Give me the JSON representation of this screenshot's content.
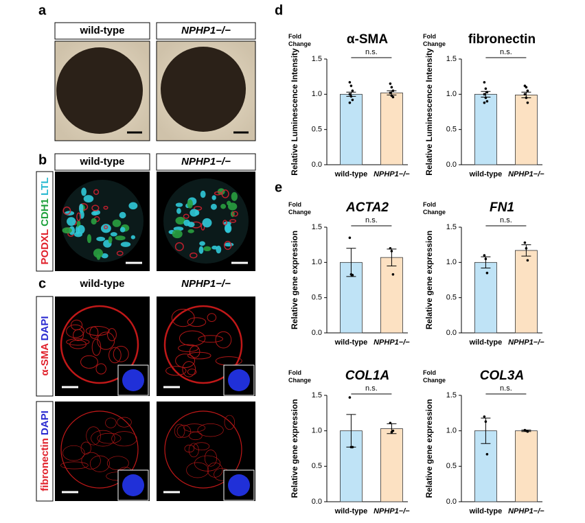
{
  "panel_labels": [
    "a",
    "b",
    "c",
    "d",
    "e"
  ],
  "column_labels": [
    "wild-type",
    "NPHP1−/−"
  ],
  "stain_labels_b": [
    "PODXL",
    "CDH1",
    "LTL"
  ],
  "stain_labels_c1": [
    "α-SMA",
    "DAPI"
  ],
  "stain_labels_c2": [
    "fibronectin",
    "DAPI"
  ],
  "chart_data": [
    {
      "type": "bar",
      "title": "α-SMA",
      "title_italic": false,
      "unit_label": "Fold Change",
      "y_label": "Relative Luminescence Intensity",
      "annotation": "n.s.",
      "categories": [
        "wild-type",
        "NPHP1−/−"
      ],
      "values": [
        1.0,
        1.02
      ],
      "errors": [
        0.03,
        0.03
      ],
      "colors": [
        "#bfe3f6",
        "#fce1c2"
      ],
      "points": [
        [
          1.17,
          1.12,
          1.05,
          1.0,
          0.97,
          0.92,
          0.88
        ],
        [
          1.15,
          1.1,
          1.05,
          1.02,
          0.98,
          0.96
        ]
      ],
      "ylim": [
        0,
        1.5
      ],
      "yticks": [
        {
          "value": 0,
          "label": "0.0"
        },
        0.5,
        {
          "value": 1,
          "label": "1.0"
        },
        1.5
      ]
    },
    {
      "type": "bar",
      "title": "fibronectin",
      "title_italic": false,
      "unit_label": "Fold Change",
      "y_label": "Relative Luminescence Intensity",
      "annotation": "n.s.",
      "categories": [
        "wild-type",
        "NPHP1−/−"
      ],
      "values": [
        1.0,
        0.99
      ],
      "errors": [
        0.04,
        0.04
      ],
      "colors": [
        "#bfe3f6",
        "#fce1c2"
      ],
      "points": [
        [
          1.17,
          1.08,
          1.03,
          1.0,
          0.95,
          0.9,
          0.88
        ],
        [
          1.12,
          1.1,
          1.05,
          1.0,
          0.95,
          0.88
        ]
      ],
      "ylim": [
        0,
        1.5
      ],
      "yticks": [
        {
          "value": 0,
          "label": "0.0"
        },
        0.5,
        {
          "value": 1,
          "label": "1.0"
        },
        1.5
      ]
    },
    {
      "type": "bar",
      "title": "ACTA2",
      "title_italic": true,
      "unit_label": "Fold Change",
      "y_label": "Relative gene expression",
      "annotation": "n.s.",
      "categories": [
        "wild-type",
        "NPHP1−/−"
      ],
      "values": [
        1.0,
        1.07
      ],
      "errors": [
        0.2,
        0.12
      ],
      "colors": [
        "#bfe3f6",
        "#fce1c2"
      ],
      "points": [
        [
          1.35,
          0.83,
          0.82
        ],
        [
          1.2,
          1.16,
          0.83
        ]
      ],
      "ylim": [
        0,
        1.5
      ],
      "yticks": [
        {
          "value": 0,
          "label": "0.0"
        },
        0.5,
        {
          "value": 1,
          "label": "1.0"
        },
        1.5
      ]
    },
    {
      "type": "bar",
      "title": "FN1",
      "title_italic": true,
      "unit_label": "Fold Change",
      "y_label": "Relative gene expression",
      "annotation": "n.s.",
      "categories": [
        "wild-type",
        "NPHP1−/−"
      ],
      "values": [
        1.0,
        1.17
      ],
      "errors": [
        0.08,
        0.08
      ],
      "colors": [
        "#bfe3f6",
        "#fce1c2"
      ],
      "points": [
        [
          1.1,
          1.05,
          0.85
        ],
        [
          1.28,
          1.2,
          1.03
        ]
      ],
      "ylim": [
        0,
        1.5
      ],
      "yticks": [
        {
          "value": 0,
          "label": "0.0"
        },
        0.5,
        {
          "value": 1,
          "label": "1.0"
        },
        1.5
      ]
    },
    {
      "type": "bar",
      "title": "COL1A",
      "title_italic": true,
      "unit_label": "Fold Change",
      "y_label": "Relative gene expression",
      "annotation": "n.s.",
      "categories": [
        "wild-type",
        "NPHP1−/−"
      ],
      "values": [
        1.0,
        1.03
      ],
      "errors": [
        0.23,
        0.07
      ],
      "colors": [
        "#bfe3f6",
        "#fce1c2"
      ],
      "points": [
        [
          1.47,
          0.77,
          0.77
        ],
        [
          1.11,
          0.98,
          1.0
        ]
      ],
      "ylim": [
        0,
        1.5
      ],
      "yticks": [
        {
          "value": 0,
          "label": "0.0"
        },
        0.5,
        {
          "value": 1,
          "label": "1.0"
        },
        1.5
      ]
    },
    {
      "type": "bar",
      "title": "COL3A",
      "title_italic": true,
      "unit_label": "Fold Change",
      "y_label": "Relative gene expression",
      "annotation": "n.s.",
      "categories": [
        "wild-type",
        "NPHP1−/−"
      ],
      "values": [
        1.0,
        1.0
      ],
      "errors": [
        0.18,
        0.01
      ],
      "colors": [
        "#bfe3f6",
        "#fce1c2"
      ],
      "points": [
        [
          1.2,
          1.13,
          0.67
        ],
        [
          1.01,
          1.0,
          0.99
        ]
      ],
      "ylim": [
        0,
        1.5
      ],
      "yticks": [
        {
          "value": 0,
          "label": "0.0"
        },
        0.5,
        {
          "value": 1,
          "label": "1.0"
        },
        1.5
      ]
    }
  ]
}
